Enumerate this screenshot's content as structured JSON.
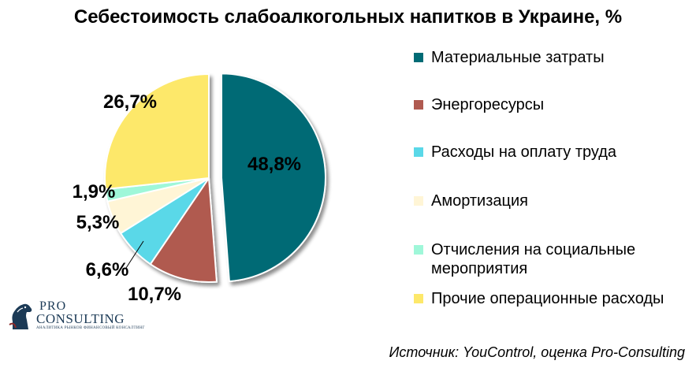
{
  "chart_data": {
    "type": "pie",
    "title": "Себестоимость слабоалкогольных напитков в Украине, %",
    "categories": [
      "Материальные затраты",
      "Энергоресурсы",
      "Расходы на оплату труда",
      "Амортизация",
      "Отчисления на социальные мероприятия",
      "Прочие операционные расходы"
    ],
    "values": [
      48.8,
      10.7,
      6.6,
      5.3,
      1.9,
      26.7
    ],
    "value_labels": [
      "48,8%",
      "10,7%",
      "6,6%",
      "5,3%",
      "1,9%",
      "26,7%"
    ],
    "colors": [
      "#006b75",
      "#b05a50",
      "#5ad8e8",
      "#fff5d6",
      "#9ff7d9",
      "#fde86a"
    ],
    "legend_position": "right",
    "exploded_slices": [
      "Материальные затраты"
    ]
  },
  "legend": {
    "items": [
      {
        "label": "Материальные затраты"
      },
      {
        "label": "Энергоресурсы"
      },
      {
        "label": "Расходы на оплату труда"
      },
      {
        "label": "Амортизация"
      },
      {
        "label": "Отчисления на социальные мероприятия"
      },
      {
        "label": "Прочие операционные расходы"
      }
    ]
  },
  "source": "Источник: YouControl, оценка Pro-Consulting",
  "logo": {
    "pro": "PRO",
    "consulting": "CONSULTING",
    "tagline": "АНАЛИТИКА РЫНКОВ ФИНАНСОВЫЙ КОНСАЛТИНГ"
  }
}
